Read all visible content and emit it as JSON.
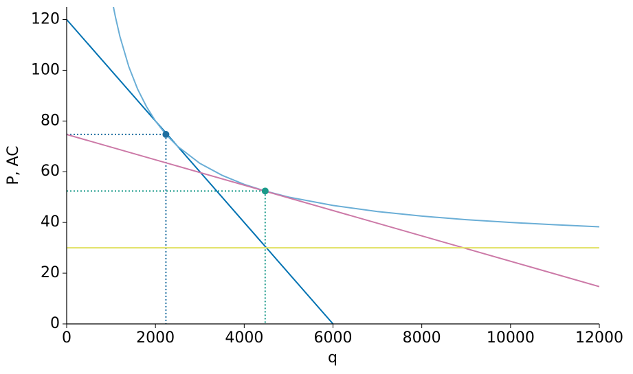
{
  "chart_data": {
    "type": "line",
    "xlabel": "q",
    "ylabel": "P, AC",
    "xlim": [
      0,
      12000
    ],
    "ylim": [
      0,
      125
    ],
    "xticks": [
      0,
      2000,
      4000,
      6000,
      8000,
      10000,
      12000
    ],
    "yticks": [
      0,
      20,
      40,
      60,
      80,
      100,
      120
    ],
    "grid": false,
    "series": [
      {
        "type": "line",
        "color": "#0072b2",
        "x": [
          0,
          6000
        ],
        "values": [
          120,
          0
        ]
      },
      {
        "type": "line",
        "color": "#6aaed6",
        "x": [
          1053,
          1100,
          1200,
          1400,
          1600,
          1800,
          2000,
          2236,
          2500,
          3000,
          3500,
          4000,
          4472,
          5000,
          6000,
          7000,
          8000,
          9000,
          10000,
          11000,
          12000
        ],
        "values": [
          125,
          120.9,
          113.3,
          101.4,
          92.5,
          85.6,
          80,
          74.7,
          70,
          63.3,
          58.6,
          55,
          52.4,
          50,
          46.7,
          44.3,
          42.5,
          41.1,
          40,
          39.1,
          38.3
        ]
      },
      {
        "type": "line",
        "color": "#cc79a7",
        "x": [
          0,
          12000
        ],
        "values": [
          74.7,
          14.7
        ]
      },
      {
        "type": "line",
        "color": "#e0e060",
        "x": [
          0,
          12000
        ],
        "values": [
          30,
          30
        ]
      },
      {
        "type": "scatter",
        "color": "#1f6fa0",
        "guides": true,
        "x": [
          2236
        ],
        "values": [
          74.7
        ]
      },
      {
        "type": "scatter",
        "color": "#1a9a8a",
        "guides": true,
        "x": [
          4472
        ],
        "values": [
          52.4
        ]
      }
    ]
  }
}
